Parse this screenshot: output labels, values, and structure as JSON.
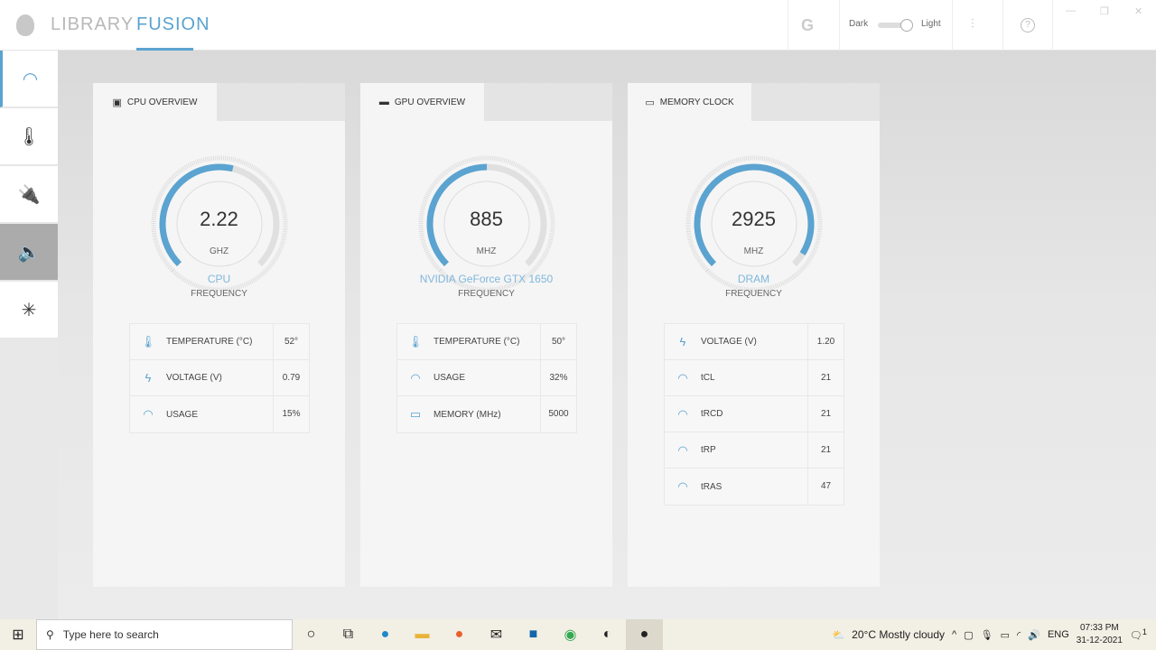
{
  "header": {
    "tabs": [
      {
        "label": "LIBRARY"
      },
      {
        "label": "FUSION",
        "active": true
      }
    ],
    "theme_dark": "Dark",
    "theme_light": "Light",
    "theme_selected": "Light",
    "icons": [
      "alienware-logo",
      "g-logo",
      "sliders-icon",
      "help-icon",
      "minimize-icon",
      "restore-icon",
      "close-icon"
    ]
  },
  "sidebar": {
    "items": [
      {
        "icon": "overclock-gauge-icon",
        "active": true
      },
      {
        "icon": "thermometer-icon"
      },
      {
        "icon": "power-plug-icon"
      },
      {
        "icon": "speaker-icon",
        "hover": true
      },
      {
        "icon": "lighting-icon"
      }
    ]
  },
  "accent": "#5ba3d0",
  "cards": [
    {
      "title": "CPU OVERVIEW",
      "icon": "cpu-chip-icon",
      "value": "2.22",
      "unit": "GHZ",
      "name": "CPU",
      "sub": "FREQUENCY",
      "fill": 0.55,
      "rows": [
        {
          "icon": "thermometer-icon",
          "label": "TEMPERATURE (°C)",
          "value": "52°"
        },
        {
          "icon": "lightning-icon",
          "label": "VOLTAGE (V)",
          "value": "0.79"
        },
        {
          "icon": "gauge-icon",
          "label": "USAGE",
          "value": "15%"
        }
      ]
    },
    {
      "title": "GPU OVERVIEW",
      "icon": "gpu-card-icon",
      "value": "885",
      "unit": "MHZ",
      "name": "NVIDIA GeForce GTX 1650",
      "sub": "FREQUENCY",
      "fill": 0.5,
      "rows": [
        {
          "icon": "thermometer-icon",
          "label": "TEMPERATURE (°C)",
          "value": "50°"
        },
        {
          "icon": "gauge-icon",
          "label": "USAGE",
          "value": "32%"
        },
        {
          "icon": "memory-icon",
          "label": "MEMORY (MHz)",
          "value": "5000"
        }
      ]
    },
    {
      "title": "MEMORY CLOCK",
      "icon": "memory-module-icon",
      "value": "2925",
      "unit": "MHZ",
      "name": "DRAM",
      "sub": "FREQUENCY",
      "fill": 0.95,
      "rows": [
        {
          "icon": "lightning-icon",
          "label": "VOLTAGE (V)",
          "value": "1.20"
        },
        {
          "icon": "gauge-icon",
          "label": "tCL",
          "value": "21"
        },
        {
          "icon": "gauge-icon",
          "label": "tRCD",
          "value": "21"
        },
        {
          "icon": "gauge-icon",
          "label": "tRP",
          "value": "21"
        },
        {
          "icon": "gauge-icon",
          "label": "tRAS",
          "value": "47"
        }
      ]
    }
  ],
  "taskbar": {
    "search_placeholder": "Type here to search",
    "weather": "20°C  Mostly cloudy",
    "language": "ENG",
    "time": "07:33 PM",
    "date": "31-12-2021",
    "notifications": "1"
  }
}
